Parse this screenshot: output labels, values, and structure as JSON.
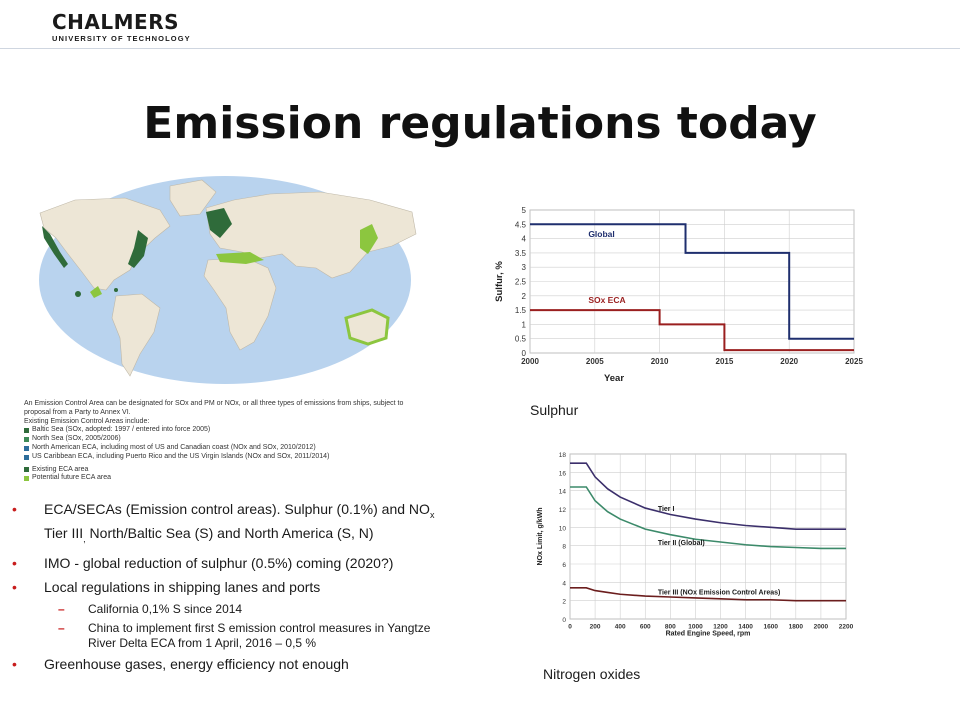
{
  "header": {
    "logo_main": "CHALMERS",
    "logo_sub": "UNIVERSITY OF TECHNOLOGY"
  },
  "slide": {
    "title": "Emission regulations today",
    "map_caption": {
      "intro": "An Emission Control Area can be designated for SOx and PM or NOx, or all three types of emissions from ships, subject to proposal from a Party to Annex VI.",
      "list_title": "Existing Emission Control Areas include:",
      "items": [
        "Baltic Sea (SOx, adopted: 1997 / entered into force 2005)",
        "North Sea (SOx, 2005/2006)",
        "North American ECA, including most of US and Canadian coast (NOx and SOx, 2010/2012)",
        "US Caribbean ECA, including Puerto Rico and the US Virgin Islands (NOx and SOx, 2011/2014)"
      ],
      "legend": [
        "Existing ECA area",
        "Potential future ECA area"
      ]
    },
    "bullets": [
      {
        "text_a": "ECA/SECAs (Emission control areas). Sulphur (0.1%) and NO",
        "sub": "x",
        "text_b": " Tier III",
        "sub2": ",",
        "text_c": "  North/Baltic Sea (S) and North America (S, N)"
      },
      {
        "text": "IMO  - global reduction of sulphur (0.5%) coming (2020?)"
      },
      {
        "text": "Local regulations in shipping lanes and ports"
      },
      {
        "text": "Greenhouse gases, energy efficiency not enough"
      }
    ],
    "subbullets": [
      "California 0,1% S since 2014",
      "China to implement first S emission control measures in Yangtze River Delta ECA from 1 April, 2016 – 0,5 %"
    ],
    "sulphur_label": "Sulphur",
    "nox_label": "Nitrogen oxides"
  },
  "colors": {
    "bullet_red": "#c81d1d",
    "ocean": "#b9d3ee",
    "land": "#ede6d6",
    "eca_dark": "#2f6b3a",
    "eca_light": "#8cc63f"
  },
  "chart_data": [
    {
      "type": "line",
      "xlabel": "Year",
      "ylabel": "Sulfur, %",
      "xlim": [
        2000,
        2025
      ],
      "ylim": [
        0,
        5
      ],
      "xticks": [
        "2000",
        "2005",
        "2010",
        "2015",
        "2020",
        "2025"
      ],
      "yticks": [
        "0",
        "0.5",
        "1",
        "1.5",
        "2",
        "2.5",
        "3",
        "3.5",
        "4",
        "4.5",
        "5"
      ],
      "series": [
        {
          "name": "Global",
          "color": "#1f2f6e",
          "x": [
            2000,
            2012,
            2012,
            2020,
            2020,
            2025
          ],
          "y": [
            4.5,
            4.5,
            3.5,
            3.5,
            0.5,
            0.5
          ]
        },
        {
          "name": "SOx ECA",
          "color": "#9a1f1f",
          "x": [
            2000,
            2010,
            2010,
            2015,
            2015,
            2025
          ],
          "y": [
            1.5,
            1.5,
            1.0,
            1.0,
            0.1,
            0.1
          ]
        }
      ]
    },
    {
      "type": "line",
      "xlabel": "Rated Engine Speed, rpm",
      "ylabel": "NOx Limit, g/kWh",
      "xlim": [
        0,
        2200
      ],
      "ylim": [
        0,
        18
      ],
      "xticks": [
        "0",
        "200",
        "400",
        "600",
        "800",
        "1000",
        "1200",
        "1400",
        "1600",
        "1800",
        "2000",
        "2200"
      ],
      "yticks": [
        "0",
        "2",
        "4",
        "6",
        "8",
        "10",
        "12",
        "14",
        "16",
        "18"
      ],
      "series": [
        {
          "name": "Tier I",
          "color": "#3b2f6b",
          "x": [
            0,
            130,
            200,
            300,
            400,
            600,
            800,
            1000,
            1200,
            1400,
            1600,
            1800,
            2000,
            2200
          ],
          "y": [
            17,
            17,
            15.5,
            14.2,
            13.3,
            12.1,
            11.4,
            10.9,
            10.5,
            10.2,
            10.0,
            9.8,
            9.8,
            9.8
          ]
        },
        {
          "name": "Tier II (Global)",
          "color": "#3c8a6a",
          "x": [
            0,
            130,
            200,
            300,
            400,
            600,
            800,
            1000,
            1200,
            1400,
            1600,
            1800,
            2000,
            2200
          ],
          "y": [
            14.4,
            14.4,
            12.9,
            11.7,
            10.9,
            9.8,
            9.2,
            8.7,
            8.4,
            8.1,
            7.9,
            7.8,
            7.7,
            7.7
          ]
        },
        {
          "name": "Tier III (NOx Emission Control Areas)",
          "color": "#6b1d1d",
          "x": [
            0,
            130,
            200,
            300,
            400,
            600,
            800,
            1000,
            1200,
            1400,
            1600,
            1800,
            2000,
            2200
          ],
          "y": [
            3.4,
            3.4,
            3.1,
            2.9,
            2.7,
            2.5,
            2.4,
            2.3,
            2.2,
            2.1,
            2.1,
            2.0,
            2.0,
            2.0
          ]
        }
      ]
    }
  ]
}
